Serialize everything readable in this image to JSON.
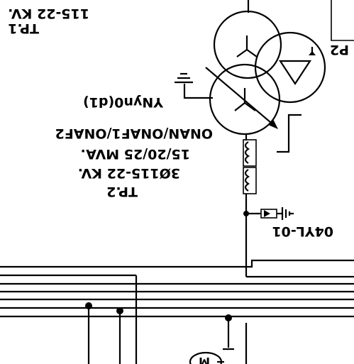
{
  "transformer_tp1": {
    "label": "TP.1",
    "voltage": "115-22 KV."
  },
  "transformer_tp2": {
    "label": "TP.2",
    "voltage": "3Ø115-22 KV.",
    "rating": "15/20/25 MVA.",
    "cooling": "ONAN/ONAF1/ONAF2",
    "vector_group": "YNyn0(d1)"
  },
  "arrester": {
    "label": "04YL-01"
  },
  "partial_label": "P2",
  "motor_symbol": {
    "label": "M"
  }
}
